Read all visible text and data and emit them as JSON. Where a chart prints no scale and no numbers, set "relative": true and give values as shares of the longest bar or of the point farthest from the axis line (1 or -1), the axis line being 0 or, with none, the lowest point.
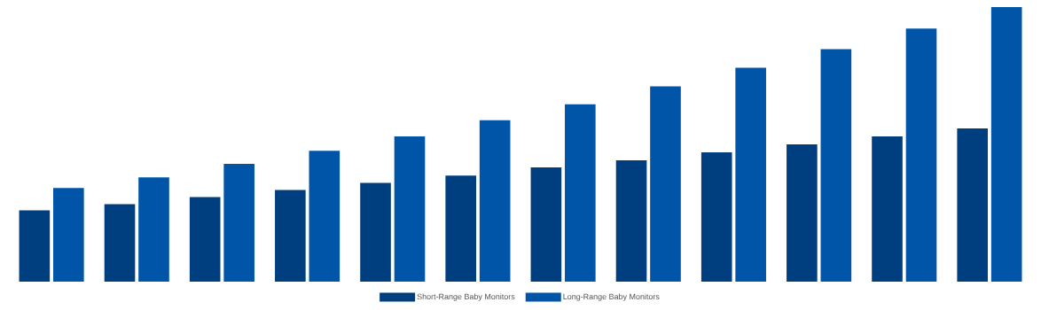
{
  "chart_data": {
    "type": "bar",
    "relative": true,
    "categories": [
      null,
      null,
      null,
      null,
      null,
      null,
      null,
      null,
      null,
      null,
      null,
      null
    ],
    "series": [
      {
        "name": "Short-Range Baby Monitors",
        "color": "#003f7f",
        "values": [
          0.26,
          0.282,
          0.308,
          0.334,
          0.36,
          0.386,
          0.416,
          0.442,
          0.471,
          0.5,
          0.529,
          0.558
        ]
      },
      {
        "name": "Long-Range Baby Monitors",
        "color": "#0055a8",
        "values": [
          0.341,
          0.38,
          0.429,
          0.477,
          0.529,
          0.588,
          0.646,
          0.711,
          0.779,
          0.847,
          0.922,
          1
        ]
      }
    ],
    "legend": "bottom"
  }
}
